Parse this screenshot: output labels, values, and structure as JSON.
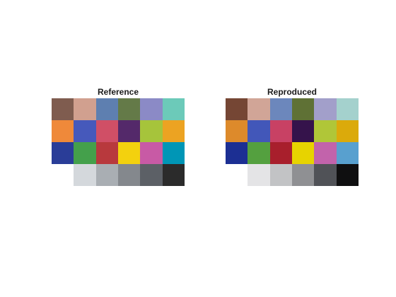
{
  "panels": [
    {
      "title": "Reference",
      "swatches": [
        "#7f5c4f",
        "#d1a08f",
        "#5e7fb0",
        "#647a48",
        "#8b8ac6",
        "#6ccab9",
        "#ef893a",
        "#4659bb",
        "#d04f66",
        "#54296a",
        "#a6c43b",
        "#eca322",
        "#2a3d98",
        "#44a04b",
        "#b8393d",
        "#f3d10e",
        "#c85aa5",
        "#0096b6",
        "#ffffff",
        "#d4d8dc",
        "#a9aeb3",
        "#84888d",
        "#5c6066",
        "#2b2b2b"
      ]
    },
    {
      "title": "Reproduced",
      "swatches": [
        "#754634",
        "#d1a597",
        "#6c87bc",
        "#5f7135",
        "#a29fca",
        "#a4d1cd",
        "#dd8a2b",
        "#4257b9",
        "#c84164",
        "#35134b",
        "#b0c638",
        "#dbaa0b",
        "#1c2f93",
        "#54a03f",
        "#a81f2c",
        "#e7d300",
        "#c263ab",
        "#58a0cf",
        "#ffffff",
        "#e4e4e6",
        "#c2c3c5",
        "#8f9093",
        "#505257",
        "#0f0f10"
      ]
    }
  ]
}
